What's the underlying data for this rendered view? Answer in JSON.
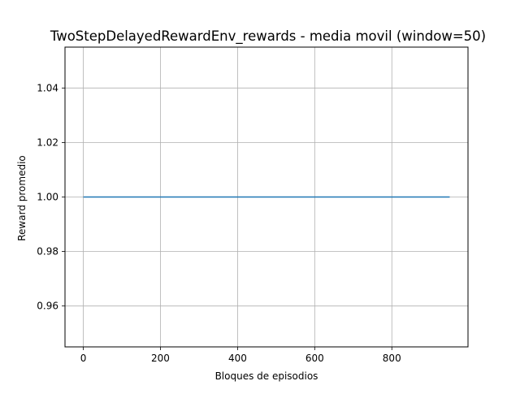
{
  "chart_data": {
    "type": "line",
    "title": "TwoStepDelayedRewardEnv_rewards - media movil (window=50)",
    "xlabel": "Bloques de episodios",
    "ylabel": "Reward promedio",
    "xlim": [
      -47.5,
      997.5
    ],
    "ylim": [
      0.945,
      1.055
    ],
    "xticks": [
      0,
      200,
      400,
      600,
      800
    ],
    "xtick_labels": [
      "0",
      "200",
      "400",
      "600",
      "800"
    ],
    "yticks": [
      0.96,
      0.98,
      1.0,
      1.02,
      1.04
    ],
    "ytick_labels": [
      "0.96",
      "0.98",
      "1.00",
      "1.02",
      "1.04"
    ],
    "grid": true,
    "series": [
      {
        "x": [
          0,
          950
        ],
        "y": [
          1.0,
          1.0
        ],
        "color": "#1f77b4"
      }
    ]
  }
}
